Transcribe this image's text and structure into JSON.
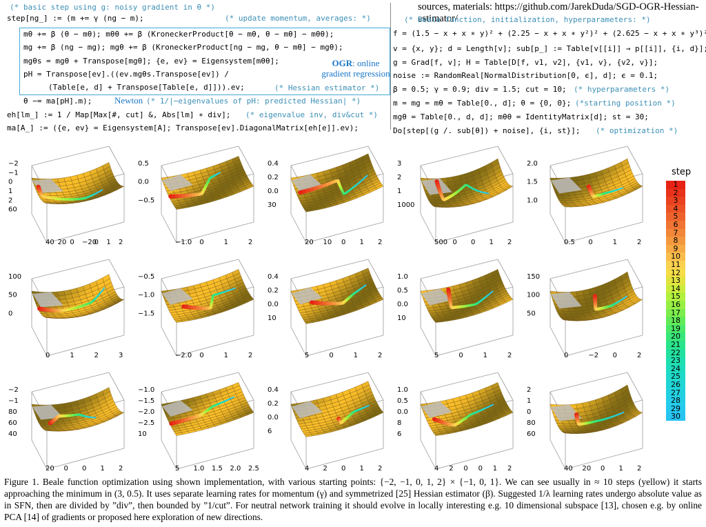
{
  "header": {
    "sources": "sources, materials: https://github.com/JarekDuda/SGD-OGR-Hessian-estimator/"
  },
  "left_code": {
    "c0": "(* basic step using g: noisy gradient in θ *)",
    "l1": "step[ng_] := (m += γ (ng − m);",
    "c1": "(* update momentum, averages: *)",
    "l2": "mθ += β (θ − mθ); mθθ += β (KroneckerProduct[θ − mθ, θ − mθ] − mθθ);",
    "l3": "mg += β (ng − mg); mgθ += β (KroneckerProduct[ng − mg, θ − mθ] − mgθ);",
    "l4": "mgθs = mgθ + Transpose[mgθ]; {e, ev} = Eigensystem[mθθ];",
    "l5": "pH = Transpose[ev].((ev.mgθs.Transpose[ev]) /",
    "l6": "(Table[e, d] + Transpose[Table[e, d]])).ev;",
    "c6": "(* Hessian estimator *)",
    "ogr_bold": "OGR",
    "ogr_rest": ": online",
    "ogr_line2": "gradient regression",
    "newton": "Newton",
    "c7": "(* 1/|−eigenvalues of pH: predicted Hessian| *)",
    "l7": "θ −= ma[pH].m);",
    "l8": "eh[lm_] := 1 / Map[Max[#, cut] &, Abs[lm] ∗ div];",
    "c8": "(* eigenvalue inv, div&cut *)",
    "l9": "ma[A_] := ({e, ev} = Eigensystem[A]; Transpose[ev].DiagonalMatrix[eh[e]].ev);"
  },
  "right_code": {
    "c0": "(* Beale function, initialization, hyperparameters: *)",
    "l1": "f = (1.5 − x + x ∗ y)² + (2.25 − x + x ∗ y²)² + (2.625 − x + x ∗ y³)²;",
    "l2": "v = {x, y}; d = Length[v]; sub[p_] := Table[v[[i]] → p[[i]], {i, d}];",
    "l3": "g = Grad[f, v]; H = Table[D[f, v1, v2], {v1, v}, {v2, v}];",
    "l4": "noise := RandomReal[NormalDistribution[0, ϵ], d]; ϵ = 0.1;",
    "l5": "β = 0.5; γ = 0.9; div = 1.5; cut = 10;",
    "c5": "(* hyperparameters *)",
    "l6": "m = mg = mθ = Table[0., d]; θ = {0, 0};",
    "c6": "(*starting position *)",
    "l7": "mgθ = Table[0., d, d]; mθθ = IdentityMatrix[d]; st = 30;",
    "l8": "Do[step[(g /. sub[θ]) + noise], {i, st}];",
    "c8": "(* optimization *)"
  },
  "legend": {
    "title": "step",
    "labels": [
      "1",
      "2",
      "3",
      "4",
      "5",
      "6",
      "7",
      "8",
      "9",
      "10",
      "11",
      "12",
      "13",
      "14",
      "15",
      "16",
      "17",
      "18",
      "19",
      "20",
      "21",
      "22",
      "23",
      "24",
      "25",
      "26",
      "27",
      "28",
      "29",
      "30"
    ],
    "colors": [
      "#e62314",
      "#e8321a",
      "#ea4220",
      "#ec5226",
      "#ee632c",
      "#f07433",
      "#f28639",
      "#f4983f",
      "#f6aa45",
      "#f8bd4b",
      "#fad150",
      "#f5dc48",
      "#e3e33f",
      "#ccec3d",
      "#b2f03e",
      "#97ef44",
      "#7ced4d",
      "#62eb58",
      "#4ae968",
      "#38e67a",
      "#2ae48c",
      "#22e19e",
      "#1fdfae",
      "#1edcbd",
      "#1fd9ca",
      "#20d5d6",
      "#22d1e0",
      "#24cde8",
      "#25c9ee",
      "#27c4f2"
    ]
  },
  "plots": [
    {
      "ticks": [
        "−2",
        "−1",
        "0",
        "1",
        "2",
        "60",
        "40",
        "20",
        "0",
        "−20",
        "0",
        "1",
        "2"
      ]
    },
    {
      "ticks": [
        "0.5",
        "0.0",
        "−0.5",
        "−1.0",
        "0",
        "1",
        "2"
      ]
    },
    {
      "ticks": [
        "0.4",
        "0.2",
        "0.0",
        "30",
        "20",
        "10",
        "0",
        "1",
        "2"
      ]
    },
    {
      "ticks": [
        "3",
        "2",
        "1",
        "1000",
        "500",
        "0",
        "0",
        "1",
        "2"
      ]
    },
    {
      "ticks": [
        "2.0",
        "1.5",
        "1.0",
        "0.5",
        "0",
        "1",
        "2"
      ]
    },
    {
      "ticks": [
        "100",
        "50",
        "0",
        "0",
        "1",
        "2",
        "3"
      ]
    },
    {
      "ticks": [
        "−0.5",
        "−1.0",
        "−1.5",
        "−2.0",
        "0",
        "1",
        "2"
      ]
    },
    {
      "ticks": [
        "0.4",
        "0.2",
        "0.0",
        "10",
        "5",
        "0",
        "1",
        "2"
      ]
    },
    {
      "ticks": [
        "1.0",
        "0.5",
        "0.0",
        "10",
        "5",
        "0",
        "1",
        "2"
      ]
    },
    {
      "ticks": [
        "150",
        "100",
        "50",
        "0",
        "−2",
        "0",
        "2"
      ]
    },
    {
      "ticks": [
        "−2",
        "−1",
        "80",
        "60",
        "40",
        "20",
        "0",
        "0",
        "1",
        "2"
      ]
    },
    {
      "ticks": [
        "−1.0",
        "−1.5",
        "−2.0",
        "−2.5",
        "10",
        "5",
        "1.0",
        "1.5",
        "2.0",
        "2.5"
      ]
    },
    {
      "ticks": [
        "0.4",
        "0.2",
        "0.0",
        "6",
        "4",
        "2",
        "0",
        "1",
        "2"
      ]
    },
    {
      "ticks": [
        "1.0",
        "0.5",
        "0.0",
        "8",
        "6",
        "4",
        "2",
        "0",
        "0",
        "1",
        "2"
      ]
    },
    {
      "ticks": [
        "2",
        "1",
        "0",
        "80",
        "60",
        "40",
        "20",
        "0",
        "1",
        "2"
      ]
    }
  ],
  "caption": {
    "text": "Figure 1.   Beale function optimization using shown implementation, with various starting points: {−2, −1, 0, 1, 2} × {−1, 0, 1}. We can see usually in ≈ 10 steps (yellow) it starts approaching the minimum in (3, 0.5). It uses separate learning rates for momentum (γ) and symmetrized [25] Hessian estimator (β). Suggested 1/λ learning rates undergo absolute value as in SFN, then are divided by ”div”, then bounded by ”1/cut”. For neutral network training it should evolve in locally interesting e.g. 10 dimensional subspace [13], chosen e.g. by online PCA [14] of gradients or proposed here exploration of new directions."
  }
}
